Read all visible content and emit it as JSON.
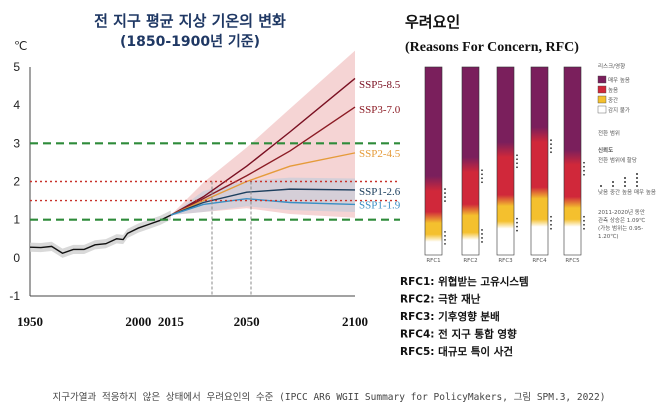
{
  "left": {
    "title": "전 지구 평균 지상 기온의 변화",
    "subtitle": "(1850-1900년 기준)",
    "unit": "℃"
  },
  "right": {
    "title": "우려요인",
    "subtitle": "(Reasons For Concern, RFC)",
    "legend_title": "리스크/영향",
    "legend_items": [
      "매우 높음",
      "높음",
      "중간",
      "감지 불가"
    ],
    "note1": "전환 범위",
    "conf_title": "신뢰도",
    "conf_sub": "전환 범위에 할당",
    "conf_levels": [
      "낮음",
      "중간",
      "높음",
      "매우 높음"
    ],
    "note2": "2011-2020년 동안",
    "note3": "관측 상승은 1.09℃",
    "note4": "(가능 범위는 0.95-",
    "note5": "1.20℃)",
    "rfc_names": [
      "RFC1",
      "RFC2",
      "RFC3",
      "RFC4",
      "RFC5"
    ],
    "rfc_desc": [
      "RFC1: 위협받는 고유시스템",
      "RFC2: 극한 재난",
      "RFC3: 기후영향 분배",
      "RFC4: 전 지구 통합 영향",
      "RFC5: 대규모 특이 사건"
    ]
  },
  "caption": "지구가열과 적응하지 않은 상태에서 우려요인의 수준 (IPCC AR6 WGII Summary for PolicyMakers, 그림 SPM.3, 2022)",
  "chart_data": [
    {
      "type": "line",
      "title": "전 지구 평균 지상 기온의 변화",
      "subtitle": "(1850-1900년 기준)",
      "ylabel": "℃",
      "xlim": [
        1950,
        2100
      ],
      "ylim": [
        -1,
        5
      ],
      "x_ticks": [
        1950,
        2000,
        2015,
        2050,
        2100
      ],
      "y_ticks": [
        -1,
        0,
        1,
        2,
        3,
        4,
        5
      ],
      "grid": false,
      "historical": {
        "x": [
          1950,
          1955,
          1960,
          1965,
          1970,
          1975,
          1980,
          1985,
          1990,
          1993,
          1995,
          2000,
          2005,
          2010,
          2015
        ],
        "y": [
          0.28,
          0.27,
          0.3,
          0.12,
          0.22,
          0.22,
          0.34,
          0.37,
          0.5,
          0.48,
          0.64,
          0.78,
          0.88,
          0.98,
          1.12
        ]
      },
      "series": [
        {
          "name": "SSP5-8.5",
          "color": "#7a1022",
          "x": [
            2015,
            2030,
            2050,
            2070,
            2100
          ],
          "y": [
            1.12,
            1.6,
            2.4,
            3.3,
            4.7
          ]
        },
        {
          "name": "SSP3-7.0",
          "color": "#8c1c25",
          "x": [
            2015,
            2030,
            2050,
            2070,
            2100
          ],
          "y": [
            1.12,
            1.55,
            2.15,
            2.8,
            3.95
          ]
        },
        {
          "name": "SSP2-4.5",
          "color": "#e59b3a",
          "x": [
            2015,
            2030,
            2050,
            2070,
            2100
          ],
          "y": [
            1.12,
            1.5,
            2.0,
            2.4,
            2.75
          ]
        },
        {
          "name": "SSP1-2.6",
          "color": "#1d3f5e",
          "x": [
            2015,
            2030,
            2050,
            2070,
            2100
          ],
          "y": [
            1.12,
            1.45,
            1.72,
            1.8,
            1.78
          ]
        },
        {
          "name": "SSP1-1.9",
          "color": "#3a8fc4",
          "x": [
            2015,
            2030,
            2050,
            2070,
            2100
          ],
          "y": [
            1.12,
            1.4,
            1.55,
            1.45,
            1.4
          ]
        }
      ],
      "reference_lines": [
        {
          "y": 3.0,
          "color": "#2e8b3a",
          "style": "dashed"
        },
        {
          "y": 2.0,
          "color": "#c8322a",
          "style": "dotted"
        },
        {
          "y": 1.5,
          "color": "#c8322a",
          "style": "dotted"
        },
        {
          "y": 1.0,
          "color": "#2e8b3a",
          "style": "dashed"
        }
      ],
      "vertical_markers": [
        2034,
        2052
      ]
    },
    {
      "type": "heatmap",
      "title": "우려요인",
      "subtitle": "(Reasons For Concern, RFC)",
      "categories": [
        "RFC1",
        "RFC2",
        "RFC3",
        "RFC4",
        "RFC5"
      ],
      "bars_ylim": [
        0,
        5
      ],
      "transitions": [
        {
          "rfc": "RFC1",
          "undetectable_to": 0.35,
          "moderate_to": 0.85,
          "high_to": 1.7
        },
        {
          "rfc": "RFC2",
          "undetectable_to": 0.4,
          "moderate_to": 1.05,
          "high_to": 2.2
        },
        {
          "rfc": "RFC3",
          "undetectable_to": 0.7,
          "moderate_to": 1.3,
          "high_to": 2.6
        },
        {
          "rfc": "RFC4",
          "undetectable_to": 0.75,
          "moderate_to": 1.5,
          "high_to": 3.0
        },
        {
          "rfc": "RFC5",
          "undetectable_to": 0.75,
          "moderate_to": 1.25,
          "high_to": 2.4
        }
      ],
      "legend_placement": "right",
      "colors": {
        "very_high": "#7a1f5c",
        "high": "#d0283a",
        "moderate": "#f4c02e",
        "undetectable": "#ffffff"
      }
    }
  ]
}
